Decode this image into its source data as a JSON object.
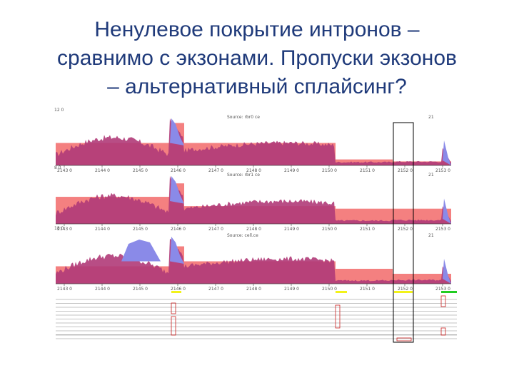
{
  "slide": {
    "title_lines": [
      "Ненулевое покрытие интронов –",
      "сравнимо с экзонами. Пропуски экзонов",
      "– альтернативный сплайсинг?"
    ]
  },
  "tracks": [
    {
      "scale_label": "12 0",
      "source_label": "Source: rbr0 ce",
      "right_label": "21"
    },
    {
      "scale_label": "8 0",
      "source_label": "Source: rbr1 ce",
      "right_label": "21"
    },
    {
      "scale_label": "18 0",
      "source_label": "Source: cell.ce",
      "right_label": "21"
    }
  ],
  "axis_ticks": [
    "2143 0",
    "2144 0",
    "2145 0",
    "2146 0",
    "2147 0",
    "2148 0",
    "2149 0",
    "2150 0",
    "2151 0",
    "2152 0",
    "2153 0"
  ],
  "colors": {
    "title": "#1f3a7a",
    "exon_band": "#f48080",
    "coverage": "#b03a78",
    "coverage_blue": "#8a8ae8",
    "exon_yellow": "#f2f21a",
    "exon_green": "#22cc22"
  }
}
